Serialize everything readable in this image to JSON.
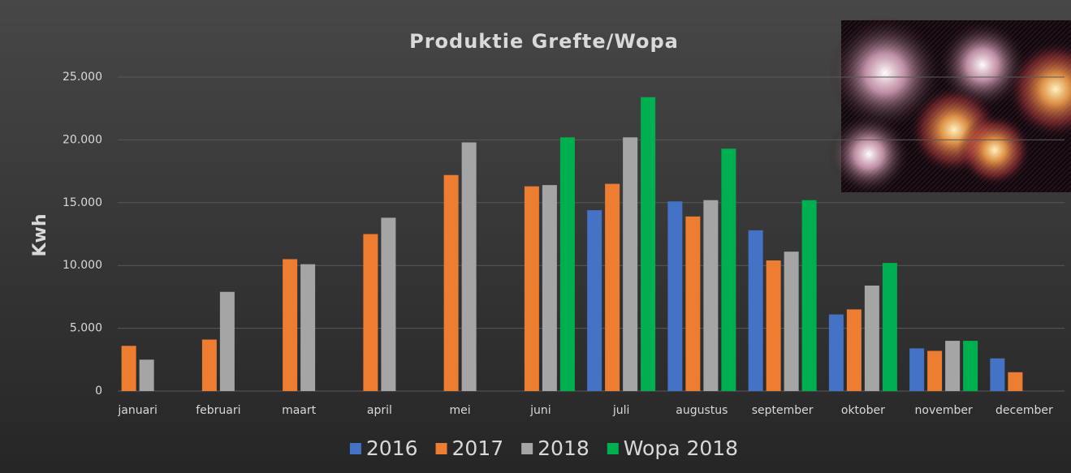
{
  "chart_data": {
    "type": "bar",
    "title": "Produktie Grefte/Wopa",
    "y_label": "Kwh",
    "categories": [
      "januari",
      "februari",
      "maart",
      "april",
      "mei",
      "juni",
      "juli",
      "augustus",
      "september",
      "oktober",
      "november",
      "december"
    ],
    "series": [
      {
        "name": "2016",
        "color": "#4472c4",
        "values": [
          null,
          null,
          null,
          null,
          null,
          null,
          14400,
          15100,
          12800,
          6100,
          3400,
          2600
        ]
      },
      {
        "name": "2017",
        "color": "#ed7d31",
        "values": [
          3600,
          4100,
          10500,
          12500,
          17200,
          16300,
          16500,
          13900,
          10400,
          6500,
          3200,
          1500
        ]
      },
      {
        "name": "2018",
        "color": "#a5a5a5",
        "values": [
          2500,
          7900,
          10100,
          13800,
          19800,
          16400,
          20200,
          15200,
          11100,
          8400,
          4000,
          null
        ]
      },
      {
        "name": "Wopa 2018",
        "color": "#00b050",
        "values": [
          null,
          null,
          null,
          null,
          null,
          20200,
          23400,
          19300,
          15200,
          10200,
          4000,
          null
        ]
      }
    ],
    "ylim": [
      0,
      25000
    ],
    "yticks": [
      0,
      {
        "value": 5000,
        "label": "5.000"
      },
      {
        "value": 10000,
        "label": "10.000"
      },
      {
        "value": 15000,
        "label": "15.000"
      },
      {
        "value": 20000,
        "label": "20.000"
      },
      {
        "value": 25000,
        "label": "25.000"
      }
    ],
    "grid": true
  }
}
